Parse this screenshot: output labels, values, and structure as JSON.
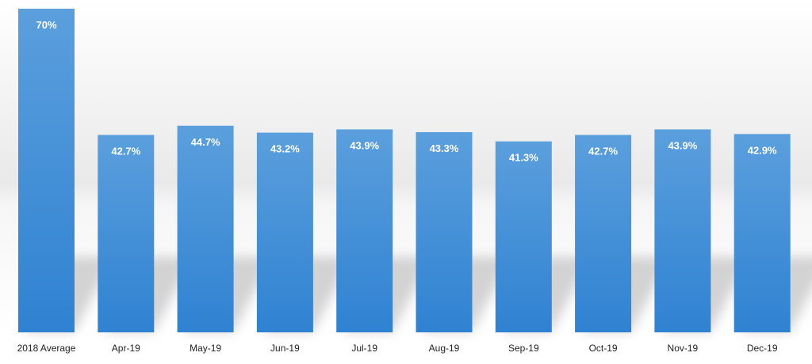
{
  "chart_data": {
    "type": "bar",
    "categories": [
      "2018 Average",
      "Apr-19",
      "May-19",
      "Jun-19",
      "Jul-19",
      "Aug-19",
      "Sep-19",
      "Oct-19",
      "Nov-19",
      "Dec-19"
    ],
    "values": [
      70,
      42.7,
      44.7,
      43.2,
      43.9,
      43.3,
      41.3,
      42.7,
      43.9,
      42.9
    ],
    "data_labels": [
      "70%",
      "42.7%",
      "44.7%",
      "43.2%",
      "43.9%",
      "43.3%",
      "41.3%",
      "42.7%",
      "43.9%",
      "42.9%"
    ],
    "title": "",
    "xlabel": "",
    "ylabel": "",
    "ylim": [
      0,
      70
    ],
    "grid": false,
    "legend": "none",
    "colors": {
      "bar_top": "#5b9fdd",
      "bar_bottom": "#2f82d2",
      "label": "#ffffff",
      "tick": "#222222"
    }
  }
}
